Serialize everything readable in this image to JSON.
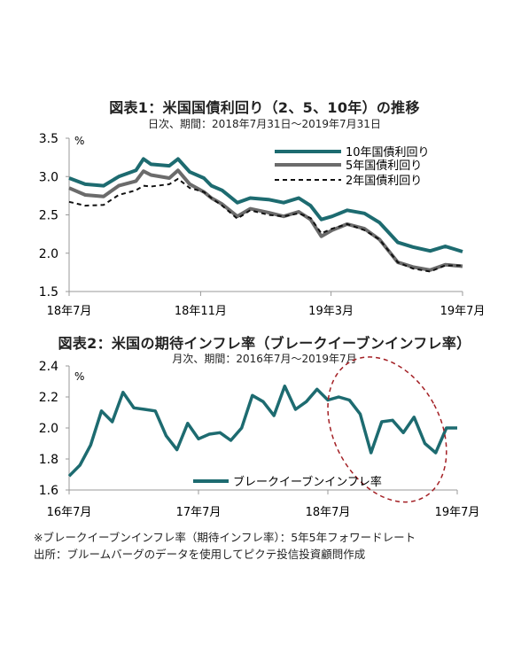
{
  "chart_data": [
    {
      "type": "line",
      "title": "図表1：米国国債利回り（2、5、10年）の推移",
      "subtitle": "日次、期間：2018年7月31日～2019年7月31日",
      "ylabel": "%",
      "ylim": [
        1.5,
        3.5
      ],
      "yticks": [
        "3.5",
        "3.0",
        "2.5",
        "2.0",
        "1.5"
      ],
      "xticks": [
        "18年7月",
        "18年11月",
        "19年3月",
        "19年7月"
      ],
      "legend_position": "top-right",
      "grid": false,
      "x": [
        "2018-07-31",
        "2018-08-15",
        "2018-09-01",
        "2018-09-15",
        "2018-10-01",
        "2018-10-08",
        "2018-10-15",
        "2018-11-01",
        "2018-11-09",
        "2018-11-20",
        "2018-12-03",
        "2018-12-10",
        "2018-12-20",
        "2019-01-03",
        "2019-01-15",
        "2019-02-01",
        "2019-02-15",
        "2019-03-01",
        "2019-03-12",
        "2019-03-22",
        "2019-04-01",
        "2019-04-15",
        "2019-05-01",
        "2019-05-15",
        "2019-06-01",
        "2019-06-15",
        "2019-07-01",
        "2019-07-15",
        "2019-07-31"
      ],
      "series": [
        {
          "name": "10年国債利回り",
          "color": "#1d6b70",
          "values": [
            2.98,
            2.9,
            2.88,
            3.0,
            3.08,
            3.23,
            3.16,
            3.14,
            3.23,
            3.06,
            2.98,
            2.88,
            2.82,
            2.66,
            2.72,
            2.7,
            2.66,
            2.72,
            2.62,
            2.44,
            2.48,
            2.56,
            2.52,
            2.4,
            2.14,
            2.08,
            2.03,
            2.09,
            2.02
          ]
        },
        {
          "name": "5年国債利回り",
          "color": "#6b6b6b",
          "values": [
            2.85,
            2.76,
            2.74,
            2.88,
            2.94,
            3.07,
            3.02,
            2.98,
            3.08,
            2.9,
            2.8,
            2.72,
            2.64,
            2.48,
            2.58,
            2.53,
            2.48,
            2.54,
            2.44,
            2.22,
            2.3,
            2.38,
            2.32,
            2.18,
            1.88,
            1.82,
            1.78,
            1.85,
            1.83
          ]
        },
        {
          "name": "2年国債利回り",
          "color": "#111111",
          "values": [
            2.67,
            2.62,
            2.63,
            2.76,
            2.82,
            2.88,
            2.87,
            2.9,
            2.97,
            2.85,
            2.8,
            2.72,
            2.62,
            2.45,
            2.56,
            2.5,
            2.48,
            2.52,
            2.46,
            2.26,
            2.32,
            2.38,
            2.3,
            2.18,
            1.88,
            1.8,
            1.76,
            1.84,
            1.84
          ]
        }
      ]
    },
    {
      "type": "line",
      "title": "図表2：米国の期待インフレ率（ブレークイーブンインフレ率）",
      "subtitle": "月次、期間：2016年7月～2019年7月",
      "ylabel": "%",
      "ylim": [
        1.6,
        2.4
      ],
      "yticks": [
        "2.4",
        "2.2",
        "2.0",
        "1.8",
        "1.6"
      ],
      "xticks": [
        "16年7月",
        "17年7月",
        "18年7月",
        "19年7月"
      ],
      "legend_position": "bottom-center",
      "grid": false,
      "x": [
        "2016-07",
        "2016-08",
        "2016-09",
        "2016-10",
        "2016-11",
        "2016-12",
        "2017-01",
        "2017-02",
        "2017-03",
        "2017-04",
        "2017-05",
        "2017-06",
        "2017-07",
        "2017-08",
        "2017-09",
        "2017-10",
        "2017-11",
        "2017-12",
        "2018-01",
        "2018-02",
        "2018-03",
        "2018-04",
        "2018-05",
        "2018-06",
        "2018-07",
        "2018-08",
        "2018-09",
        "2018-10",
        "2018-11",
        "2018-12",
        "2019-01",
        "2019-02",
        "2019-03",
        "2019-04",
        "2019-05",
        "2019-06",
        "2019-07"
      ],
      "series": [
        {
          "name": "ブレークイーブンインフレ率",
          "color": "#1d6b70",
          "values": [
            1.69,
            1.76,
            1.89,
            2.11,
            2.04,
            2.23,
            2.13,
            2.12,
            2.11,
            1.95,
            1.86,
            2.03,
            1.93,
            1.96,
            1.97,
            1.92,
            2.0,
            2.21,
            2.17,
            2.08,
            2.27,
            2.12,
            2.17,
            2.25,
            2.18,
            2.2,
            2.18,
            2.09,
            1.84,
            2.04,
            2.05,
            1.97,
            2.07,
            1.9,
            1.84,
            2.0,
            2.0
          ]
        }
      ]
    }
  ],
  "footnote": "※ブレークイーブンインフレ率（期待インフレ率）：5年5年フォワードレート",
  "source": "出所：ブルームバーグのデータを使用してピクテ投信投資顧問作成"
}
